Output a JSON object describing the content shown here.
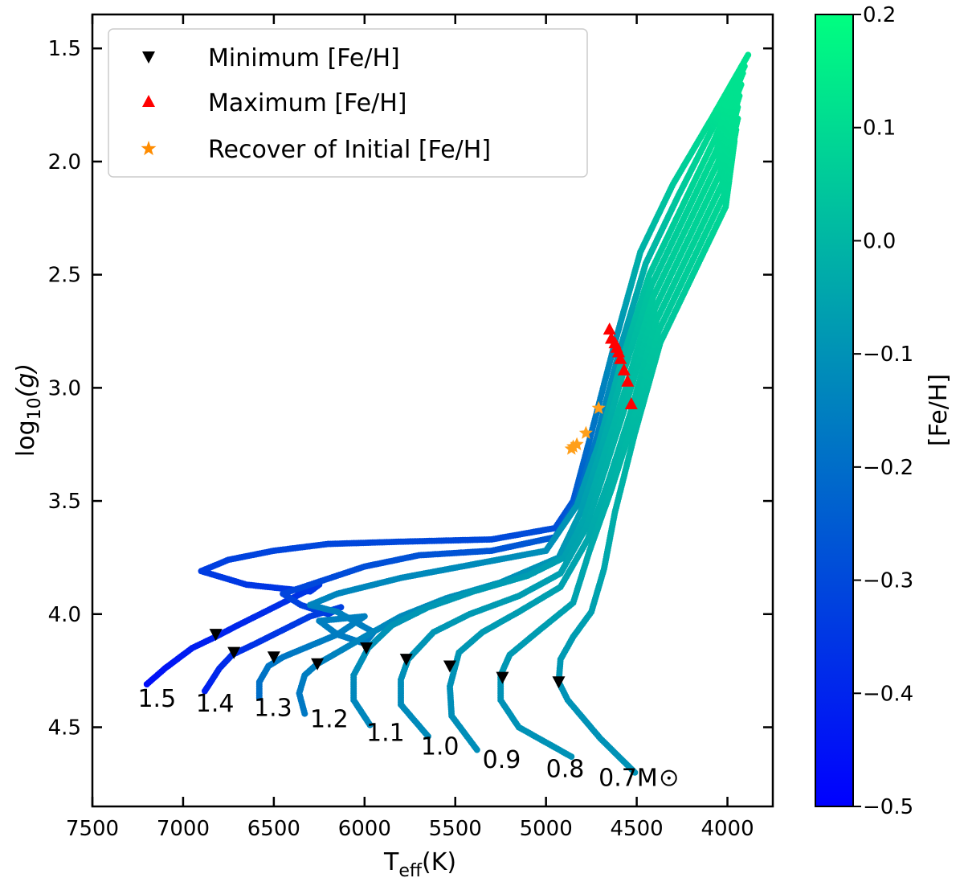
{
  "chart_data": {
    "type": "scatter",
    "xlabel": "T",
    "xlabel_sub": "eff",
    "xlabel_unit": "(K)",
    "ylabel": "log",
    "ylabel_sub": "10",
    "ylabel_var": "(g)",
    "xlim": [
      7500,
      3750
    ],
    "ylim": [
      4.85,
      1.35
    ],
    "x_ticks": [
      7500,
      7000,
      6500,
      6000,
      5500,
      5000,
      4500,
      4000
    ],
    "x_tick_labels": [
      "7500",
      "7000",
      "6500",
      "6000",
      "5500",
      "5000",
      "4500",
      "4000"
    ],
    "y_ticks": [
      1.5,
      2.0,
      2.5,
      3.0,
      3.5,
      4.0,
      4.5
    ],
    "y_tick_labels": [
      "1.5",
      "2.0",
      "2.5",
      "3.0",
      "3.5",
      "4.0",
      "4.5"
    ],
    "colorbar": {
      "label": "[Fe/H]",
      "range": [
        -0.5,
        0.2
      ],
      "ticks": [
        0.2,
        0.1,
        0.0,
        -0.1,
        -0.2,
        -0.3,
        -0.4,
        -0.5
      ],
      "tick_labels": [
        "0.2",
        "0.1",
        "0.0",
        "−0.1",
        "−0.2",
        "−0.3",
        "−0.4",
        "−0.5"
      ],
      "colors": {
        "low": "#0000ff",
        "high": "#00ff80"
      }
    },
    "legend": {
      "position": "top-left",
      "entries": [
        {
          "label": "Minimum [Fe/H]",
          "marker": "triangle-down",
          "color": "#000000"
        },
        {
          "label": "Maximum [Fe/H]",
          "marker": "triangle-up",
          "color": "#ff0000"
        },
        {
          "label": "Recover of Initial [Fe/H]",
          "marker": "star",
          "color": "#ff8c00"
        }
      ]
    },
    "tracks": [
      {
        "mass": "1.5",
        "label": "1.5",
        "label_pos": [
          7250,
          4.41
        ],
        "feh_ms": -0.48,
        "feh_sg": -0.2,
        "points": [
          [
            7200,
            4.31
          ],
          [
            7100,
            4.24
          ],
          [
            6950,
            4.15
          ],
          [
            6820,
            4.1
          ],
          [
            6700,
            4.05
          ],
          [
            6550,
            3.99
          ],
          [
            6400,
            3.93
          ],
          [
            6250,
            3.87
          ],
          [
            6300,
            3.9
          ],
          [
            6650,
            3.87
          ],
          [
            6900,
            3.81
          ],
          [
            6750,
            3.76
          ],
          [
            6500,
            3.72
          ],
          [
            6200,
            3.69
          ],
          [
            5800,
            3.68
          ],
          [
            5300,
            3.67
          ],
          [
            4950,
            3.62
          ],
          [
            4850,
            3.5
          ],
          [
            4750,
            3.2
          ],
          [
            4620,
            2.8
          ],
          [
            4480,
            2.4
          ],
          [
            4300,
            2.1
          ],
          [
            4080,
            1.8
          ],
          [
            3880,
            1.52
          ]
        ]
      },
      {
        "mass": "1.4",
        "label": "1.4",
        "label_pos": [
          6930,
          4.43
        ],
        "feh_ms": -0.42,
        "feh_sg": -0.12,
        "points": [
          [
            6880,
            4.34
          ],
          [
            6800,
            4.24
          ],
          [
            6730,
            4.18
          ],
          [
            6600,
            4.13
          ],
          [
            6450,
            4.07
          ],
          [
            6300,
            4.01
          ],
          [
            6130,
            3.97
          ],
          [
            6200,
            4.0
          ],
          [
            6350,
            3.96
          ],
          [
            6450,
            3.91
          ],
          [
            6300,
            3.87
          ],
          [
            6000,
            3.79
          ],
          [
            5700,
            3.74
          ],
          [
            5300,
            3.72
          ],
          [
            4950,
            3.66
          ],
          [
            4830,
            3.5
          ],
          [
            4720,
            3.22
          ],
          [
            4600,
            2.85
          ],
          [
            4450,
            2.45
          ],
          [
            4270,
            2.15
          ],
          [
            4080,
            1.85
          ],
          [
            3900,
            1.57
          ]
        ]
      },
      {
        "mass": "1.3",
        "label": "1.3",
        "label_pos": [
          6610,
          4.45
        ],
        "feh_ms": -0.2,
        "feh_sg": -0.08,
        "points": [
          [
            6580,
            4.37
          ],
          [
            6580,
            4.3
          ],
          [
            6530,
            4.23
          ],
          [
            6450,
            4.19
          ],
          [
            6300,
            4.14
          ],
          [
            6150,
            4.09
          ],
          [
            6000,
            4.01
          ],
          [
            6250,
            4.03
          ],
          [
            6150,
            4.09
          ],
          [
            6000,
            4.13
          ],
          [
            5950,
            4.08
          ],
          [
            6150,
            3.99
          ],
          [
            6300,
            3.96
          ],
          [
            6150,
            3.91
          ],
          [
            5800,
            3.84
          ],
          [
            5400,
            3.78
          ],
          [
            5000,
            3.72
          ],
          [
            4830,
            3.52
          ],
          [
            4710,
            3.25
          ],
          [
            4590,
            2.9
          ],
          [
            4430,
            2.5
          ],
          [
            4250,
            2.2
          ],
          [
            4070,
            1.9
          ],
          [
            3910,
            1.6
          ]
        ]
      },
      {
        "mass": "1.2",
        "label": "1.2",
        "label_pos": [
          6300,
          4.5
        ],
        "feh_ms": -0.17,
        "feh_sg": -0.05,
        "points": [
          [
            6330,
            4.44
          ],
          [
            6360,
            4.35
          ],
          [
            6330,
            4.27
          ],
          [
            6260,
            4.22
          ],
          [
            6150,
            4.17
          ],
          [
            6000,
            4.1
          ],
          [
            5800,
            4.01
          ],
          [
            5550,
            3.93
          ],
          [
            5250,
            3.86
          ],
          [
            4930,
            3.75
          ],
          [
            4810,
            3.55
          ],
          [
            4700,
            3.28
          ],
          [
            4580,
            2.95
          ],
          [
            4420,
            2.55
          ],
          [
            4240,
            2.25
          ],
          [
            4060,
            1.95
          ],
          [
            3920,
            1.65
          ]
        ]
      },
      {
        "mass": "1.1",
        "label": "1.1",
        "label_pos": [
          5990,
          4.56
        ],
        "feh_ms": -0.13,
        "feh_sg": -0.04,
        "points": [
          [
            5970,
            4.49
          ],
          [
            6060,
            4.38
          ],
          [
            6060,
            4.27
          ],
          [
            5980,
            4.15
          ],
          [
            5850,
            4.05
          ],
          [
            5650,
            3.97
          ],
          [
            5400,
            3.9
          ],
          [
            5100,
            3.83
          ],
          [
            4900,
            3.75
          ],
          [
            4790,
            3.58
          ],
          [
            4680,
            3.3
          ],
          [
            4560,
            3.0
          ],
          [
            4410,
            2.6
          ],
          [
            4230,
            2.3
          ],
          [
            4050,
            2.0
          ],
          [
            3930,
            1.7
          ]
        ]
      },
      {
        "mass": "1.0",
        "label": "1.0",
        "label_pos": [
          5690,
          4.62
        ],
        "feh_ms": -0.12,
        "feh_sg": -0.03,
        "points": [
          [
            5650,
            4.54
          ],
          [
            5800,
            4.4
          ],
          [
            5800,
            4.29
          ],
          [
            5760,
            4.2
          ],
          [
            5620,
            4.08
          ],
          [
            5420,
            4.0
          ],
          [
            5150,
            3.92
          ],
          [
            4920,
            3.82
          ],
          [
            4780,
            3.62
          ],
          [
            4670,
            3.35
          ],
          [
            4550,
            3.05
          ],
          [
            4400,
            2.65
          ],
          [
            4220,
            2.35
          ],
          [
            4040,
            2.05
          ],
          [
            3940,
            1.75
          ]
        ]
      },
      {
        "mass": "0.9",
        "label": "0.9",
        "label_pos": [
          5350,
          4.68
        ],
        "feh_ms": -0.11,
        "feh_sg": -0.03,
        "points": [
          [
            5380,
            4.6
          ],
          [
            5520,
            4.45
          ],
          [
            5530,
            4.32
          ],
          [
            5480,
            4.17
          ],
          [
            5350,
            4.08
          ],
          [
            5150,
            3.99
          ],
          [
            4920,
            3.88
          ],
          [
            4770,
            3.67
          ],
          [
            4650,
            3.4
          ],
          [
            4530,
            3.1
          ],
          [
            4390,
            2.7
          ],
          [
            4210,
            2.4
          ],
          [
            4030,
            2.1
          ],
          [
            3940,
            1.8
          ]
        ]
      },
      {
        "mass": "0.8",
        "label": "0.8",
        "label_pos": [
          5000,
          4.72
        ],
        "feh_ms": -0.1,
        "feh_sg": -0.03,
        "points": [
          [
            4860,
            4.63
          ],
          [
            5150,
            4.5
          ],
          [
            5250,
            4.38
          ],
          [
            5250,
            4.27
          ],
          [
            5200,
            4.18
          ],
          [
            5050,
            4.08
          ],
          [
            4850,
            3.95
          ],
          [
            4760,
            3.72
          ],
          [
            4640,
            3.45
          ],
          [
            4520,
            3.15
          ],
          [
            4380,
            2.75
          ],
          [
            4200,
            2.45
          ],
          [
            4020,
            2.15
          ],
          [
            3950,
            1.85
          ]
        ]
      },
      {
        "mass": "0.7",
        "label": "0.7M",
        "label_pos": [
          4710,
          4.76
        ],
        "feh_ms": -0.1,
        "feh_sg": -0.04,
        "points": [
          [
            4510,
            4.7
          ],
          [
            4700,
            4.55
          ],
          [
            4880,
            4.38
          ],
          [
            4930,
            4.3
          ],
          [
            4920,
            4.2
          ],
          [
            4850,
            4.1
          ],
          [
            4750,
            3.99
          ],
          [
            4680,
            3.8
          ],
          [
            4620,
            3.55
          ],
          [
            4510,
            3.2
          ],
          [
            4370,
            2.8
          ],
          [
            4190,
            2.5
          ],
          [
            4010,
            2.2
          ],
          [
            3960,
            1.9
          ]
        ]
      }
    ],
    "minimum_markers": [
      [
        6820,
        4.09
      ],
      [
        6720,
        4.17
      ],
      [
        6500,
        4.19
      ],
      [
        6260,
        4.22
      ],
      [
        5990,
        4.15
      ],
      [
        5770,
        4.2
      ],
      [
        5530,
        4.23
      ],
      [
        5240,
        4.28
      ],
      [
        4930,
        4.3
      ]
    ],
    "maximum_markers": [
      [
        4650,
        2.74
      ],
      [
        4640,
        2.78
      ],
      [
        4620,
        2.8
      ],
      [
        4610,
        2.82
      ],
      [
        4600,
        2.84
      ],
      [
        4590,
        2.87
      ],
      [
        4570,
        2.92
      ],
      [
        4550,
        2.97
      ],
      [
        4530,
        3.07
      ]
    ],
    "recover_markers": [
      [
        4710,
        3.09
      ],
      [
        4780,
        3.2
      ],
      [
        4830,
        3.25
      ],
      [
        4850,
        3.26
      ],
      [
        4860,
        3.27
      ]
    ]
  }
}
